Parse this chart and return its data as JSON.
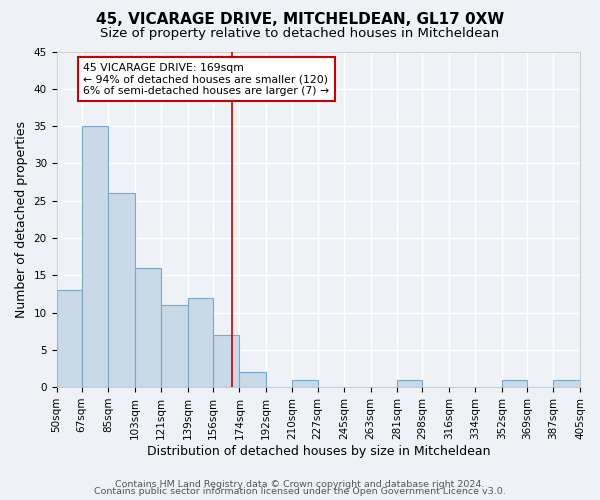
{
  "title": "45, VICARAGE DRIVE, MITCHELDEAN, GL17 0XW",
  "subtitle": "Size of property relative to detached houses in Mitcheldean",
  "xlabel": "Distribution of detached houses by size in Mitcheldean",
  "ylabel": "Number of detached properties",
  "bin_edges": [
    50,
    67,
    85,
    103,
    121,
    139,
    156,
    174,
    192,
    210,
    227,
    245,
    263,
    281,
    298,
    316,
    334,
    352,
    369,
    387,
    405
  ],
  "counts": [
    13,
    35,
    26,
    16,
    11,
    12,
    7,
    2,
    0,
    1,
    0,
    0,
    0,
    1,
    0,
    0,
    0,
    1,
    0,
    1
  ],
  "bar_color": "#c9d9e8",
  "bar_edge_color": "#7aa8c9",
  "vline_color": "#cc0000",
  "vline_x": 169,
  "annotation_title": "45 VICARAGE DRIVE: 169sqm",
  "annotation_line1": "← 94% of detached houses are smaller (120)",
  "annotation_line2": "6% of semi-detached houses are larger (7) →",
  "annotation_box_color": "#ffffff",
  "annotation_box_edge": "#cc0000",
  "ylim": [
    0,
    45
  ],
  "yticks": [
    0,
    5,
    10,
    15,
    20,
    25,
    30,
    35,
    40,
    45
  ],
  "tick_labels": [
    "50sqm",
    "67sqm",
    "85sqm",
    "103sqm",
    "121sqm",
    "139sqm",
    "156sqm",
    "174sqm",
    "192sqm",
    "210sqm",
    "227sqm",
    "245sqm",
    "263sqm",
    "281sqm",
    "298sqm",
    "316sqm",
    "334sqm",
    "352sqm",
    "369sqm",
    "387sqm",
    "405sqm"
  ],
  "footer1": "Contains HM Land Registry data © Crown copyright and database right 2024.",
  "footer2": "Contains public sector information licensed under the Open Government Licence v3.0.",
  "bg_color": "#eef2f7",
  "plot_bg_color": "#eef2f7",
  "grid_color": "#ffffff",
  "title_fontsize": 11,
  "subtitle_fontsize": 9.5,
  "axis_label_fontsize": 9,
  "tick_fontsize": 7.5,
  "footer_fontsize": 6.8
}
